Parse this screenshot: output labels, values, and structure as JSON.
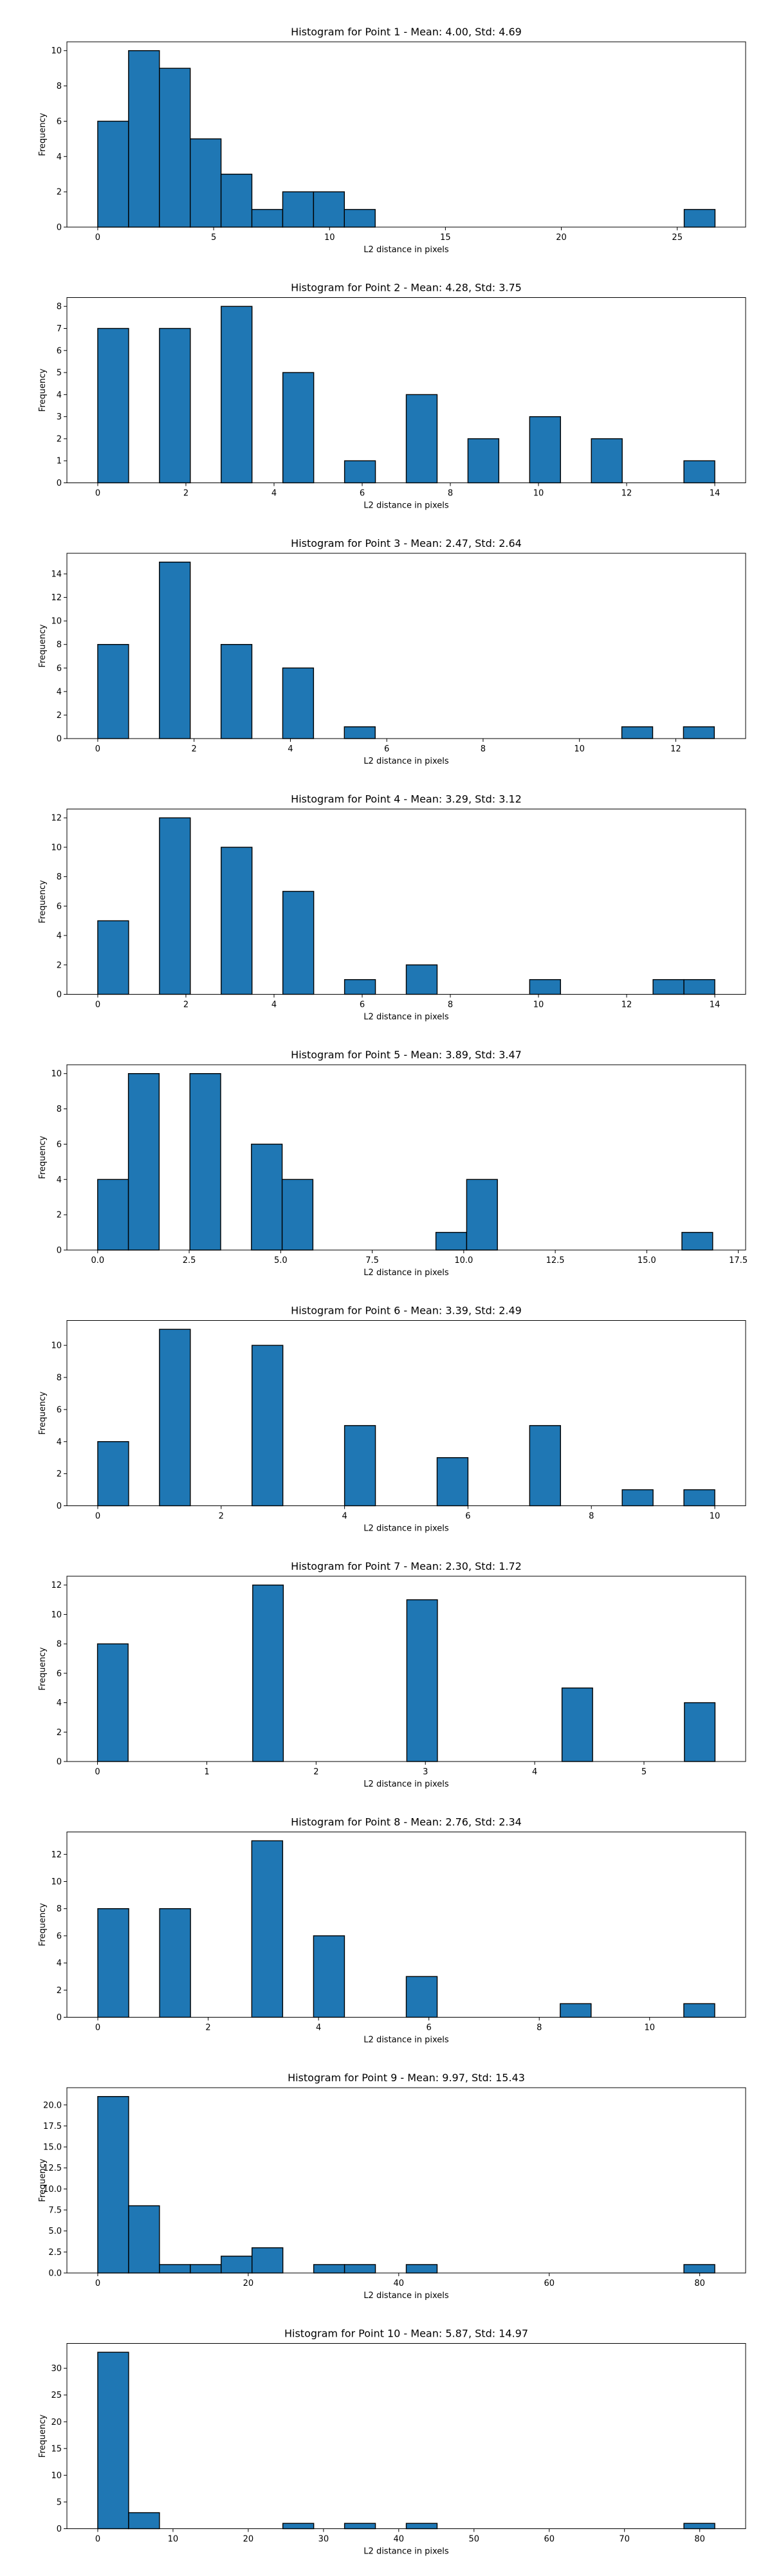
{
  "bar_color": "#1f77b4",
  "edge_color": "#000000",
  "chart_data": [
    {
      "type": "bar",
      "title": "Histogram for Point 1 - Mean: 4.00, Std: 4.69",
      "xlabel": "L2 distance in pixels",
      "ylabel": "Frequency",
      "grid": false,
      "xlim": [
        -1.33,
        27.95
      ],
      "ylim": [
        0,
        10.5
      ],
      "xticks": [
        0,
        5,
        10,
        15,
        20,
        25
      ],
      "xtick_labels": [
        "0",
        "5",
        "10",
        "15",
        "20",
        "25"
      ],
      "yticks": [
        0,
        2,
        4,
        6,
        8,
        10
      ],
      "ytick_labels": [
        "0",
        "2",
        "4",
        "6",
        "8",
        "10"
      ],
      "bins": [
        {
          "x0": 0.0,
          "x1": 1.33,
          "count": 6
        },
        {
          "x0": 1.33,
          "x1": 2.66,
          "count": 10
        },
        {
          "x0": 2.66,
          "x1": 3.99,
          "count": 9
        },
        {
          "x0": 3.99,
          "x1": 5.32,
          "count": 5
        },
        {
          "x0": 5.32,
          "x1": 6.65,
          "count": 3
        },
        {
          "x0": 6.65,
          "x1": 7.98,
          "count": 1
        },
        {
          "x0": 7.98,
          "x1": 9.31,
          "count": 2
        },
        {
          "x0": 9.31,
          "x1": 10.64,
          "count": 2
        },
        {
          "x0": 10.64,
          "x1": 11.97,
          "count": 1
        },
        {
          "x0": 25.3,
          "x1": 26.63,
          "count": 1
        }
      ]
    },
    {
      "type": "bar",
      "title": "Histogram for Point 2 - Mean: 4.28, Std: 3.75",
      "xlabel": "L2 distance in pixels",
      "ylabel": "Frequency",
      "grid": false,
      "xlim": [
        -0.7,
        14.7
      ],
      "ylim": [
        0,
        8.4
      ],
      "xticks": [
        0,
        2,
        4,
        6,
        8,
        10,
        12,
        14
      ],
      "xtick_labels": [
        "0",
        "2",
        "4",
        "6",
        "8",
        "10",
        "12",
        "14"
      ],
      "yticks": [
        0,
        1,
        2,
        3,
        4,
        5,
        6,
        7,
        8
      ],
      "ytick_labels": [
        "0",
        "1",
        "2",
        "3",
        "4",
        "5",
        "6",
        "7",
        "8"
      ],
      "bins": [
        {
          "x0": 0.0,
          "x1": 0.7,
          "count": 7
        },
        {
          "x0": 1.4,
          "x1": 2.1,
          "count": 7
        },
        {
          "x0": 2.8,
          "x1": 3.5,
          "count": 8
        },
        {
          "x0": 4.2,
          "x1": 4.9,
          "count": 5
        },
        {
          "x0": 5.6,
          "x1": 6.3,
          "count": 1
        },
        {
          "x0": 7.0,
          "x1": 7.7,
          "count": 4
        },
        {
          "x0": 8.4,
          "x1": 9.1,
          "count": 2
        },
        {
          "x0": 9.8,
          "x1": 10.5,
          "count": 3
        },
        {
          "x0": 11.2,
          "x1": 11.9,
          "count": 2
        },
        {
          "x0": 13.3,
          "x1": 14.0,
          "count": 1
        }
      ]
    },
    {
      "type": "bar",
      "title": "Histogram for Point 3 - Mean: 2.47, Std: 2.64",
      "xlabel": "L2 distance in pixels",
      "ylabel": "Frequency",
      "grid": false,
      "xlim": [
        -0.64,
        13.45
      ],
      "ylim": [
        0,
        15.75
      ],
      "xticks": [
        0,
        2,
        4,
        6,
        8,
        10,
        12
      ],
      "xtick_labels": [
        "0",
        "2",
        "4",
        "6",
        "8",
        "10",
        "12"
      ],
      "yticks": [
        0,
        2,
        4,
        6,
        8,
        10,
        12,
        14
      ],
      "ytick_labels": [
        "0",
        "2",
        "4",
        "6",
        "8",
        "10",
        "12",
        "14"
      ],
      "bins": [
        {
          "x0": 0.0,
          "x1": 0.64,
          "count": 8
        },
        {
          "x0": 1.28,
          "x1": 1.92,
          "count": 15
        },
        {
          "x0": 2.56,
          "x1": 3.2,
          "count": 8
        },
        {
          "x0": 3.84,
          "x1": 4.48,
          "count": 6
        },
        {
          "x0": 5.12,
          "x1": 5.76,
          "count": 1
        },
        {
          "x0": 10.88,
          "x1": 11.52,
          "count": 1
        },
        {
          "x0": 12.16,
          "x1": 12.8,
          "count": 1
        }
      ]
    },
    {
      "type": "bar",
      "title": "Histogram for Point 4 - Mean: 3.29, Std: 3.12",
      "xlabel": "L2 distance in pixels",
      "ylabel": "Frequency",
      "grid": false,
      "xlim": [
        -0.7,
        14.7
      ],
      "ylim": [
        0,
        12.6
      ],
      "xticks": [
        0,
        2,
        4,
        6,
        8,
        10,
        12,
        14
      ],
      "xtick_labels": [
        "0",
        "2",
        "4",
        "6",
        "8",
        "10",
        "12",
        "14"
      ],
      "yticks": [
        0,
        2,
        4,
        6,
        8,
        10,
        12
      ],
      "ytick_labels": [
        "0",
        "2",
        "4",
        "6",
        "8",
        "10",
        "12"
      ],
      "bins": [
        {
          "x0": 0.0,
          "x1": 0.7,
          "count": 5
        },
        {
          "x0": 1.4,
          "x1": 2.1,
          "count": 12
        },
        {
          "x0": 2.8,
          "x1": 3.5,
          "count": 10
        },
        {
          "x0": 4.2,
          "x1": 4.9,
          "count": 7
        },
        {
          "x0": 5.6,
          "x1": 6.3,
          "count": 1
        },
        {
          "x0": 7.0,
          "x1": 7.7,
          "count": 2
        },
        {
          "x0": 9.8,
          "x1": 10.5,
          "count": 1
        },
        {
          "x0": 12.6,
          "x1": 13.3,
          "count": 1
        },
        {
          "x0": 13.3,
          "x1": 14.0,
          "count": 1
        }
      ]
    },
    {
      "type": "bar",
      "title": "Histogram for Point 5 - Mean: 3.89, Std: 3.47",
      "xlabel": "L2 distance in pixels",
      "ylabel": "Frequency",
      "grid": false,
      "xlim": [
        -0.84,
        17.7
      ],
      "ylim": [
        0,
        10.5
      ],
      "xticks": [
        0.0,
        2.5,
        5.0,
        7.5,
        10.0,
        12.5,
        15.0,
        17.5
      ],
      "xtick_labels": [
        "0.0",
        "2.5",
        "5.0",
        "7.5",
        "10.0",
        "12.5",
        "15.0",
        "17.5"
      ],
      "yticks": [
        0,
        2,
        4,
        6,
        8,
        10
      ],
      "ytick_labels": [
        "0",
        "2",
        "4",
        "6",
        "8",
        "10"
      ],
      "bins": [
        {
          "x0": 0.0,
          "x1": 0.84,
          "count": 4
        },
        {
          "x0": 0.84,
          "x1": 1.68,
          "count": 10
        },
        {
          "x0": 2.52,
          "x1": 3.36,
          "count": 10
        },
        {
          "x0": 4.2,
          "x1": 5.04,
          "count": 6
        },
        {
          "x0": 5.04,
          "x1": 5.88,
          "count": 4
        },
        {
          "x0": 9.24,
          "x1": 10.08,
          "count": 1
        },
        {
          "x0": 10.08,
          "x1": 10.92,
          "count": 4
        },
        {
          "x0": 15.96,
          "x1": 16.8,
          "count": 1
        }
      ]
    },
    {
      "type": "bar",
      "title": "Histogram for Point 6 - Mean: 3.39, Std: 2.49",
      "xlabel": "L2 distance in pixels",
      "ylabel": "Frequency",
      "grid": false,
      "xlim": [
        -0.5,
        10.5
      ],
      "ylim": [
        0,
        11.55
      ],
      "xticks": [
        0,
        2,
        4,
        6,
        8,
        10
      ],
      "xtick_labels": [
        "0",
        "2",
        "4",
        "6",
        "8",
        "10"
      ],
      "yticks": [
        0,
        2,
        4,
        6,
        8,
        10
      ],
      "ytick_labels": [
        "0",
        "2",
        "4",
        "6",
        "8",
        "10"
      ],
      "bins": [
        {
          "x0": 0.0,
          "x1": 0.5,
          "count": 4
        },
        {
          "x0": 1.0,
          "x1": 1.5,
          "count": 11
        },
        {
          "x0": 2.5,
          "x1": 3.0,
          "count": 10
        },
        {
          "x0": 4.0,
          "x1": 4.5,
          "count": 5
        },
        {
          "x0": 5.5,
          "x1": 6.0,
          "count": 3
        },
        {
          "x0": 7.0,
          "x1": 7.5,
          "count": 5
        },
        {
          "x0": 8.5,
          "x1": 9.0,
          "count": 1
        },
        {
          "x0": 9.5,
          "x1": 10.0,
          "count": 1
        }
      ]
    },
    {
      "type": "bar",
      "title": "Histogram for Point 7 - Mean: 2.30, Std: 1.72",
      "xlabel": "L2 distance in pixels",
      "ylabel": "Frequency",
      "grid": false,
      "xlim": [
        -0.28,
        5.93
      ],
      "ylim": [
        0,
        12.6
      ],
      "xticks": [
        0,
        1,
        2,
        3,
        4,
        5
      ],
      "xtick_labels": [
        "0",
        "1",
        "2",
        "3",
        "4",
        "5"
      ],
      "yticks": [
        0,
        2,
        4,
        6,
        8,
        10,
        12
      ],
      "ytick_labels": [
        "0",
        "2",
        "4",
        "6",
        "8",
        "10",
        "12"
      ],
      "bins": [
        {
          "x0": 0.0,
          "x1": 0.28,
          "count": 8
        },
        {
          "x0": 1.42,
          "x1": 1.7,
          "count": 12
        },
        {
          "x0": 2.83,
          "x1": 3.11,
          "count": 11
        },
        {
          "x0": 4.25,
          "x1": 4.53,
          "count": 5
        },
        {
          "x0": 5.37,
          "x1": 5.65,
          "count": 4
        }
      ]
    },
    {
      "type": "bar",
      "title": "Histogram for Point 8 - Mean: 2.76, Std: 2.34",
      "xlabel": "L2 distance in pixels",
      "ylabel": "Frequency",
      "grid": false,
      "xlim": [
        -0.56,
        11.74
      ],
      "ylim": [
        0,
        13.65
      ],
      "xticks": [
        0,
        2,
        4,
        6,
        8,
        10
      ],
      "xtick_labels": [
        "0",
        "2",
        "4",
        "6",
        "8",
        "10"
      ],
      "yticks": [
        0,
        2,
        4,
        6,
        8,
        10,
        12
      ],
      "ytick_labels": [
        "0",
        "2",
        "4",
        "6",
        "8",
        "10",
        "12"
      ],
      "bins": [
        {
          "x0": 0.0,
          "x1": 0.56,
          "count": 8
        },
        {
          "x0": 1.12,
          "x1": 1.68,
          "count": 8
        },
        {
          "x0": 2.79,
          "x1": 3.35,
          "count": 13
        },
        {
          "x0": 3.91,
          "x1": 4.47,
          "count": 6
        },
        {
          "x0": 5.59,
          "x1": 6.15,
          "count": 3
        },
        {
          "x0": 8.38,
          "x1": 8.94,
          "count": 1
        },
        {
          "x0": 10.62,
          "x1": 11.18,
          "count": 1
        }
      ]
    },
    {
      "type": "bar",
      "title": "Histogram for Point 9 - Mean: 9.97, Std: 15.43",
      "xlabel": "L2 distance in pixels",
      "ylabel": "Frequency",
      "grid": false,
      "xlim": [
        -4.1,
        86.1
      ],
      "ylim": [
        0,
        22.05
      ],
      "xticks": [
        0,
        20,
        40,
        60,
        80
      ],
      "xtick_labels": [
        "0",
        "20",
        "40",
        "60",
        "80"
      ],
      "yticks": [
        0,
        2.5,
        5.0,
        7.5,
        10.0,
        12.5,
        15.0,
        17.5,
        20.0
      ],
      "ytick_labels": [
        "0.0",
        "2.5",
        "5.0",
        "7.5",
        "10.0",
        "12.5",
        "15.0",
        "17.5",
        "20.0"
      ],
      "bins": [
        {
          "x0": 0.0,
          "x1": 4.1,
          "count": 21
        },
        {
          "x0": 4.1,
          "x1": 8.2,
          "count": 8
        },
        {
          "x0": 8.2,
          "x1": 12.3,
          "count": 1
        },
        {
          "x0": 12.3,
          "x1": 16.4,
          "count": 1
        },
        {
          "x0": 16.4,
          "x1": 20.5,
          "count": 2
        },
        {
          "x0": 20.5,
          "x1": 24.6,
          "count": 3
        },
        {
          "x0": 28.7,
          "x1": 32.8,
          "count": 1
        },
        {
          "x0": 32.8,
          "x1": 36.9,
          "count": 1
        },
        {
          "x0": 41.0,
          "x1": 45.1,
          "count": 1
        },
        {
          "x0": 77.9,
          "x1": 82.0,
          "count": 1
        }
      ]
    },
    {
      "type": "bar",
      "title": "Histogram for Point 10 - Mean: 5.87, Std: 14.97",
      "xlabel": "L2 distance in pixels",
      "ylabel": "Frequency",
      "grid": false,
      "xlim": [
        -4.1,
        86.1
      ],
      "ylim": [
        0,
        34.65
      ],
      "xticks": [
        0,
        10,
        20,
        30,
        40,
        50,
        60,
        70,
        80
      ],
      "xtick_labels": [
        "0",
        "10",
        "20",
        "30",
        "40",
        "50",
        "60",
        "70",
        "80"
      ],
      "yticks": [
        0,
        5,
        10,
        15,
        20,
        25,
        30
      ],
      "ytick_labels": [
        "0",
        "5",
        "10",
        "15",
        "20",
        "25",
        "30"
      ],
      "bins": [
        {
          "x0": 0.0,
          "x1": 4.1,
          "count": 33
        },
        {
          "x0": 4.1,
          "x1": 8.2,
          "count": 3
        },
        {
          "x0": 24.6,
          "x1": 28.7,
          "count": 1
        },
        {
          "x0": 32.8,
          "x1": 36.9,
          "count": 1
        },
        {
          "x0": 41.0,
          "x1": 45.1,
          "count": 1
        },
        {
          "x0": 77.9,
          "x1": 82.0,
          "count": 1
        }
      ]
    }
  ]
}
